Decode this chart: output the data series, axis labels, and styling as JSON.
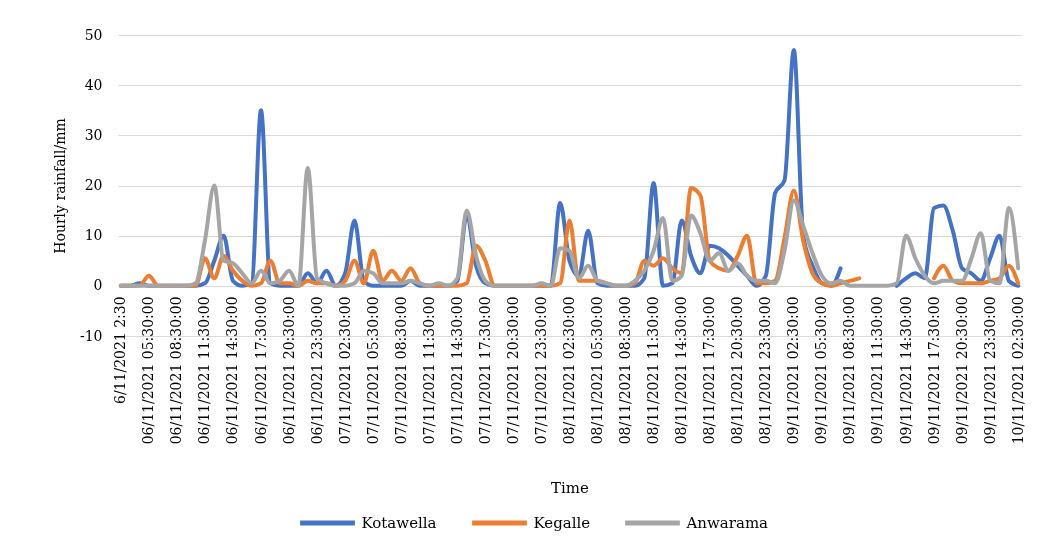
{
  "chart_data": {
    "type": "line",
    "xlabel": "Time",
    "ylabel": "Hourly rainfall/mm",
    "categories": [
      "6/11/2021 2:30",
      null,
      null,
      "06/11/2021 05:30:00",
      null,
      null,
      "06/11/2021 08:30:00",
      null,
      null,
      "06/11/2021 11:30:00",
      null,
      null,
      "06/11/2021 14:30:00",
      null,
      null,
      "06/11/2021 17:30:00",
      null,
      null,
      "06/11/2021 20:30:00",
      null,
      null,
      "06/11/2021 23:30:00",
      null,
      null,
      "07/11/2021 02:30:00",
      null,
      null,
      "07/11/2021 05:30:00",
      null,
      null,
      "07/11/2021 08:30:00",
      null,
      null,
      "07/11/2021 11:30:00",
      null,
      null,
      "07/11/2021 14:30:00",
      null,
      null,
      "07/11/2021 17:30:00",
      null,
      null,
      "07/11/2021 20:30:00",
      null,
      null,
      "07/11/2021 23:30:00",
      null,
      null,
      "08/11/2021 02:30:00",
      null,
      null,
      "08/11/2021 05:30:00",
      null,
      null,
      "08/11/2021 08:30:00",
      null,
      null,
      "08/11/2021 11:30:00",
      null,
      null,
      "08/11/2021 14:30:00",
      null,
      null,
      "08/11/2021 17:30:00",
      null,
      null,
      "08/11/2021 20:30:00",
      null,
      null,
      "08/11/2021 23:30:00",
      null,
      null,
      "09/11/2021 02:30:00",
      null,
      null,
      "09/11/2021 05:30:00",
      null,
      null,
      "09/11/2021 08:30:00",
      null,
      null,
      "09/11/2021 11:30:00",
      null,
      null,
      "09/11/2021 14:30:00",
      null,
      null,
      "09/11/2021 17:30:00",
      null,
      null,
      "09/11/2021 20:30:00",
      null,
      null,
      "09/11/2021 23:30:00",
      null,
      null,
      "10/11/2021 02:30:00"
    ],
    "series": [
      {
        "name": "Kotawella",
        "color": "#4472c4",
        "values": [
          0,
          0,
          0.5,
          0,
          0,
          0,
          0,
          0,
          0,
          0.5,
          5,
          10,
          1,
          0,
          0.5,
          35,
          0.5,
          0,
          0,
          0,
          2.5,
          0.5,
          3,
          0,
          2.5,
          13,
          1,
          0,
          0,
          0,
          0,
          1,
          0,
          0,
          0,
          0,
          1,
          14,
          4,
          0.5,
          0,
          0,
          0,
          0,
          0,
          0,
          0,
          16.5,
          5,
          2,
          11,
          0.5,
          0,
          0,
          0,
          0,
          1.5,
          20.5,
          0,
          0.5,
          13,
          6,
          2.5,
          8,
          7.5,
          6,
          4,
          2,
          0,
          2,
          18.5,
          21,
          47,
          10,
          4,
          0.5,
          0,
          3.5,
          null,
          null,
          null,
          null,
          null,
          0,
          1.5,
          2.5,
          1.5,
          15.5,
          16,
          11,
          3.5,
          2.5,
          1,
          5.5,
          10,
          1,
          0
        ]
      },
      {
        "name": "Kegalle",
        "color": "#ed7d31",
        "values": [
          0,
          0,
          0,
          2,
          0,
          0,
          0,
          0,
          0,
          5.5,
          1.5,
          6,
          3,
          1,
          0,
          0.5,
          5,
          0.5,
          0.5,
          0,
          1,
          0.5,
          0.5,
          0,
          1,
          5,
          0.5,
          7,
          1,
          3,
          1,
          3.5,
          0.5,
          0,
          0,
          0,
          0,
          0.5,
          8,
          5,
          0,
          0,
          0,
          0,
          0,
          0,
          0,
          0.5,
          13,
          1,
          1,
          1,
          0.5,
          0,
          0,
          0.5,
          5,
          4,
          5.5,
          3.5,
          2.5,
          19.5,
          18,
          5,
          3.5,
          3,
          6,
          10,
          0.5,
          0.5,
          1,
          9.5,
          19,
          9,
          2.5,
          0.5,
          0,
          0.5,
          1,
          1.5,
          null,
          null,
          null,
          null,
          null,
          null,
          null,
          1.5,
          4,
          1,
          0.5,
          0.5,
          0.5,
          1,
          1.5,
          4,
          0.5
        ]
      },
      {
        "name": "Anwarama",
        "color": "#a5a5a5",
        "values": [
          0,
          0,
          0,
          0,
          0,
          0,
          0,
          0,
          0.5,
          9,
          20,
          5,
          4.5,
          2.5,
          0.5,
          3,
          0.5,
          1,
          3,
          0,
          23.5,
          1.5,
          0.5,
          0,
          0,
          0.5,
          3,
          2.5,
          0.5,
          0.5,
          0.5,
          1,
          0.5,
          0,
          0.5,
          0,
          1.5,
          15,
          6,
          1,
          0,
          0,
          0,
          0,
          0,
          0.5,
          0,
          7.5,
          7,
          1.5,
          4,
          1,
          0.5,
          0,
          0,
          1,
          3,
          7,
          13.5,
          1,
          2,
          14,
          10.5,
          5,
          6.5,
          3,
          4.5,
          2,
          1,
          1,
          0.5,
          7,
          17,
          12,
          6.5,
          2,
          0.5,
          1,
          0,
          0,
          0,
          0,
          0,
          0.5,
          10,
          5.5,
          2,
          0.5,
          1,
          1,
          1,
          5.5,
          10.5,
          1,
          0.5,
          15.5,
          3.5
        ]
      }
    ],
    "ylim": [
      -10,
      50
    ],
    "yticks": [
      -10,
      0,
      10,
      20,
      30,
      40,
      50
    ],
    "grid": "y",
    "legend": "bottom",
    "line_style": "solid"
  }
}
